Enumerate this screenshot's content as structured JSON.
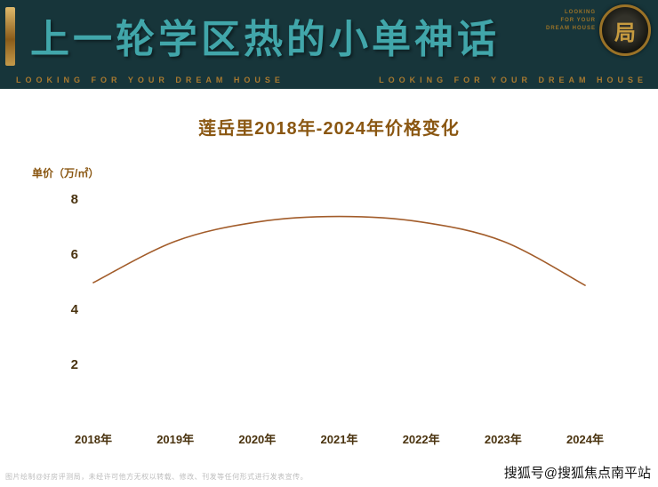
{
  "banner": {
    "title": "上一轮学区热的小单神话",
    "tagline_left": "LOOKING FOR YOUR DREAM HOUSE",
    "tagline_right": "LOOKING FOR YOUR DREAM HOUSE",
    "logo": {
      "glyph": "局",
      "caption_lines": [
        "LOOKING",
        "FOR YOUR",
        "DREAM HOUSE"
      ]
    },
    "colors": {
      "background": "#17353a",
      "title": "#41a6aa",
      "gold": "#a8792f"
    }
  },
  "chart_data": {
    "type": "line",
    "title": "莲岳里2018年-2024年价格变化",
    "ylabel": "单价（万/㎡）",
    "xlabel": "",
    "x": [
      "2018年",
      "2019年",
      "2020年",
      "2021年",
      "2022年",
      "2023年",
      "2024年"
    ],
    "values": [
      5.0,
      6.5,
      7.2,
      7.4,
      7.2,
      6.5,
      4.9
    ],
    "ylim": [
      0,
      8
    ],
    "yticks": [
      2,
      4,
      6,
      8
    ],
    "grid": false,
    "legend": false,
    "line_color": "#a25c2a",
    "title_color": "#8a5712",
    "axis_color": "#4a330f"
  },
  "footer": {
    "disclaimer": "图片绘制@好房评测局，未经许可他方无权以转载、修改、刊发等任何形式进行发表宣传。",
    "credit": "搜狐号@搜狐焦点南平站"
  }
}
